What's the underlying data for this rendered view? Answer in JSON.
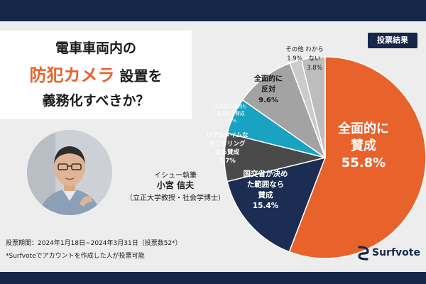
{
  "header": {
    "title_line1": "電車車両内の",
    "title_highlight": "防犯カメラ",
    "title_line2_rest": "設置を",
    "title_line3": "義務化すべきか？"
  },
  "author": {
    "role": "イシュー執筆",
    "name": "小宮 信夫",
    "affiliation": "（立正大学教授・社会学博士）"
  },
  "notes": {
    "period": "投票期間：2024年1月18日~2024年3月31日（投票数52*）",
    "footnote": "*Surfvoteでアカウントを作成した人が投票可能"
  },
  "badge": "投票結果",
  "brand": "Surfvote",
  "colors": {
    "navy": "#16274a",
    "accent": "#e8622c"
  },
  "chart_data": {
    "type": "pie",
    "title": "投票結果",
    "start": "12 o'clock, clockwise",
    "slices": [
      {
        "lines": [
          "全面的に",
          "賛成"
        ],
        "pct": "55.8%",
        "value": 55.8,
        "color": "#e8622c"
      },
      {
        "lines": [
          "国交省が決め",
          "た範囲なら",
          "賛成"
        ],
        "pct": "15.4%",
        "value": 15.4,
        "color": "#1b2d52"
      },
      {
        "lines": [
          "リアルタイムな",
          "モニタリング",
          "なら賛成"
        ],
        "pct": "7.7%",
        "value": 7.7,
        "color": "#4a4a4a"
      },
      {
        "lines": [
          "未設置の車両も",
          "あるなら賛成"
        ],
        "pct": "5.8%",
        "value": 5.8,
        "color": "#1aa3c1"
      },
      {
        "lines": [
          "全面的に",
          "反対"
        ],
        "pct": "9.6%",
        "value": 9.6,
        "color": "#a3a3a3"
      },
      {
        "lines": [
          "その他"
        ],
        "pct": "1.9%",
        "value": 1.9,
        "color": "#cbcbcb"
      },
      {
        "lines": [
          "わから",
          "ない"
        ],
        "pct": "3.8%",
        "value": 3.8,
        "color": "#bdbdbd"
      }
    ]
  }
}
